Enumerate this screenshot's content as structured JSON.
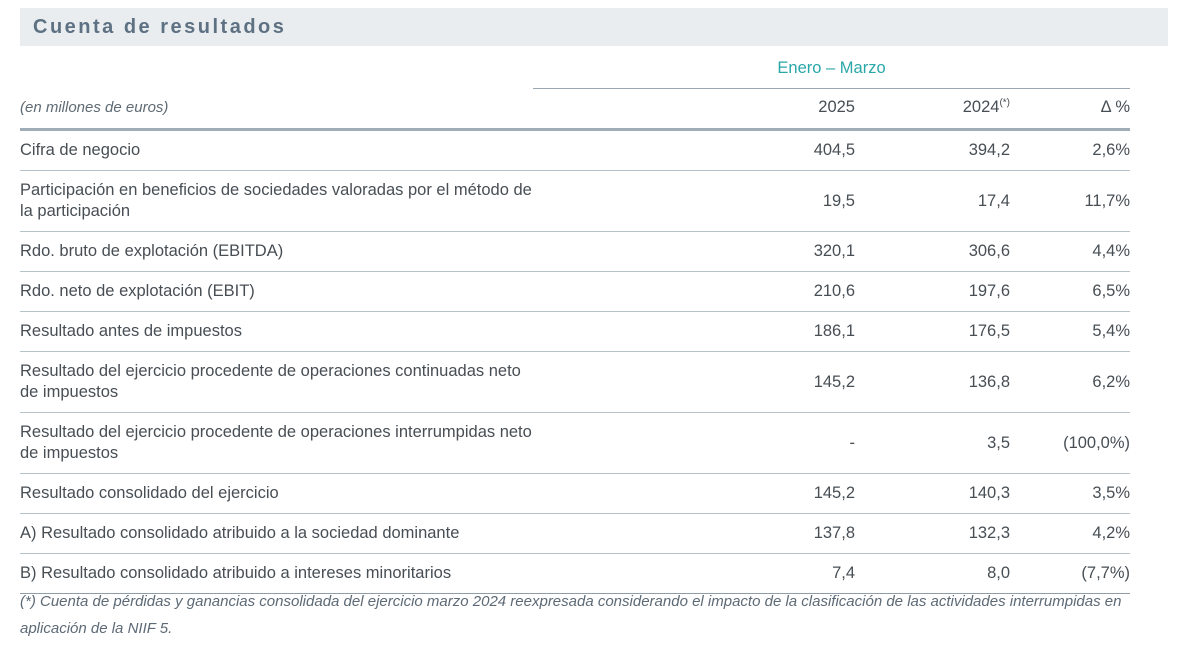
{
  "title": "Cuenta de resultados",
  "units_label": "(en millones de euros)",
  "colors": {
    "accent_teal": "#2aa7a8",
    "title_slate": "#5e7183",
    "band_background": "#e9edf0",
    "rule_dark": "#9fadb8",
    "rule_light": "#b6c2ca"
  },
  "table": {
    "period_header": "Enero – Marzo",
    "columns": [
      "2025",
      "2024",
      "Δ %"
    ],
    "footnote_marker": "(*)",
    "rows": [
      {
        "label": "Cifra de negocio",
        "v2025": "404,5",
        "v2024": "394,2",
        "delta": "2,6%"
      },
      {
        "label": "Participación en beneficios de sociedades valoradas por el método de la participación",
        "v2025": "19,5",
        "v2024": "17,4",
        "delta": "11,7%"
      },
      {
        "label": "Rdo. bruto de explotación (EBITDA)",
        "v2025": "320,1",
        "v2024": "306,6",
        "delta": "4,4%"
      },
      {
        "label": "Rdo. neto de explotación (EBIT)",
        "v2025": "210,6",
        "v2024": "197,6",
        "delta": "6,5%"
      },
      {
        "label": "Resultado antes de impuestos",
        "v2025": "186,1",
        "v2024": "176,5",
        "delta": "5,4%"
      },
      {
        "label": "Resultado del ejercicio procedente de operaciones continuadas neto de impuestos",
        "v2025": "145,2",
        "v2024": "136,8",
        "delta": "6,2%"
      },
      {
        "label": "Resultado del ejercicio procedente de operaciones interrumpidas neto de impuestos",
        "v2025": "-",
        "v2024": "3,5",
        "delta": "(100,0%)"
      },
      {
        "label": "Resultado consolidado del ejercicio",
        "v2025": "145,2",
        "v2024": "140,3",
        "delta": "3,5%"
      },
      {
        "label": "A) Resultado consolidado atribuido a la sociedad dominante",
        "v2025": "137,8",
        "v2024": "132,3",
        "delta": "4,2%"
      },
      {
        "label": "B) Resultado consolidado atribuido a intereses minoritarios",
        "v2025": "7,4",
        "v2024": "8,0",
        "delta": "(7,7%)"
      }
    ]
  },
  "footnote": "(*) Cuenta de pérdidas y ganancias consolidada del ejercicio marzo 2024 reexpresada considerando el impacto de la clasificación de las actividades interrumpidas en aplicación de la NIIF 5."
}
